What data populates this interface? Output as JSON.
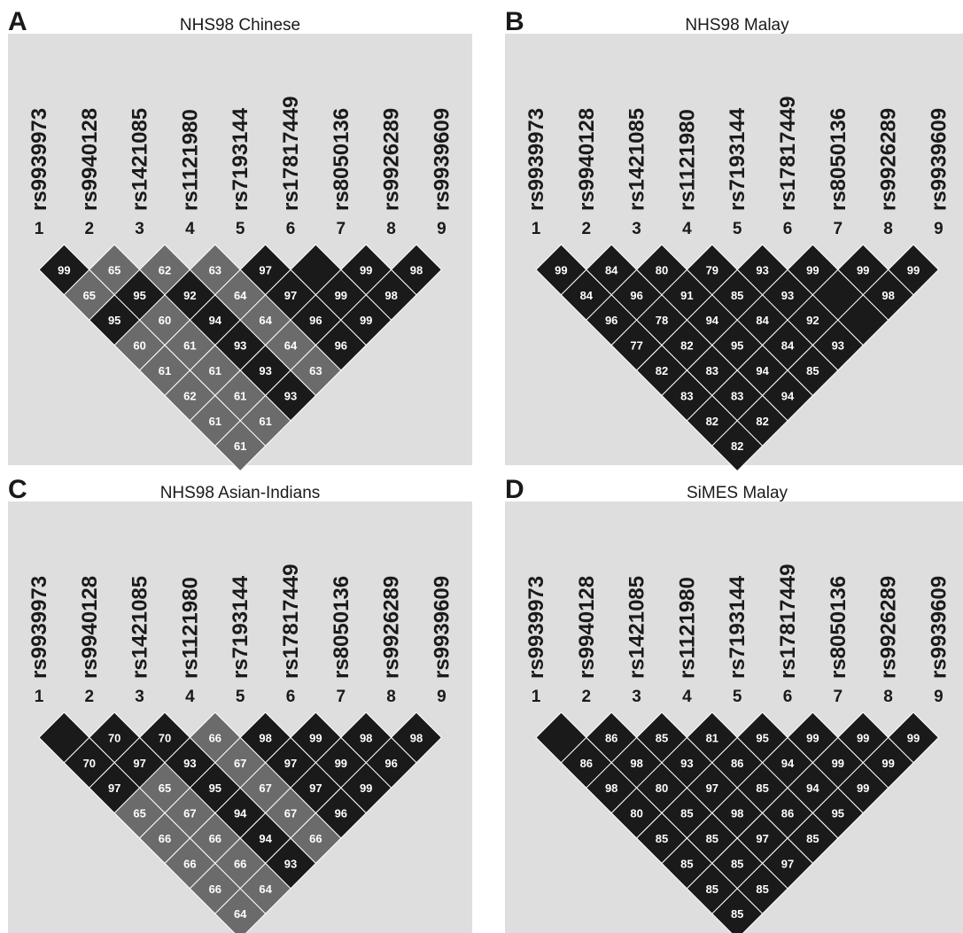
{
  "snps": [
    "rs9939973",
    "rs9940128",
    "rs1421085",
    "rs1121980",
    "rs7193144",
    "rs17817449",
    "rs8050136",
    "rs9926289",
    "rs9939609"
  ],
  "markers": [
    "1",
    "2",
    "3",
    "4",
    "5",
    "6",
    "7",
    "8",
    "9"
  ],
  "colors": {
    "background": "#dedede",
    "strong_ld": "#1a1a1a",
    "weak_ld": "#6b6b6b",
    "cell_text": "#ffffff"
  },
  "panels": [
    {
      "letter": "A",
      "title": "NHS98 Chinese",
      "matrix": [
        [
          "99",
          "65",
          "62",
          "63",
          "97",
          "",
          "99",
          "98"
        ],
        [
          "65",
          "95",
          "92",
          "64",
          "97",
          "99",
          "98"
        ],
        [
          "95",
          "60",
          "94",
          "64",
          "96",
          "99"
        ],
        [
          "60",
          "61",
          "93",
          "64",
          "96"
        ],
        [
          "61",
          "61",
          "93",
          "63"
        ],
        [
          "62",
          "61",
          "93"
        ],
        [
          "61",
          "61"
        ],
        [
          "61"
        ]
      ],
      "shades": [
        [
          "d",
          "m",
          "m",
          "m",
          "d",
          "d",
          "d",
          "d"
        ],
        [
          "m",
          "d",
          "d",
          "m",
          "d",
          "d",
          "d"
        ],
        [
          "d",
          "m",
          "d",
          "m",
          "d",
          "d"
        ],
        [
          "m",
          "m",
          "d",
          "m",
          "d"
        ],
        [
          "m",
          "m",
          "d",
          "m"
        ],
        [
          "m",
          "m",
          "d"
        ],
        [
          "m",
          "m"
        ],
        [
          "m"
        ]
      ]
    },
    {
      "letter": "B",
      "title": "NHS98 Malay",
      "matrix": [
        [
          "99",
          "84",
          "80",
          "79",
          "93",
          "99",
          "99",
          "99"
        ],
        [
          "84",
          "96",
          "91",
          "85",
          "93",
          "",
          "98"
        ],
        [
          "96",
          "78",
          "94",
          "84",
          "92",
          ""
        ],
        [
          "77",
          "82",
          "95",
          "84",
          "93"
        ],
        [
          "82",
          "83",
          "94",
          "85"
        ],
        [
          "83",
          "83",
          "94"
        ],
        [
          "82",
          "82"
        ],
        [
          "82"
        ]
      ],
      "shades": [
        [
          "d",
          "d",
          "d",
          "d",
          "d",
          "d",
          "d",
          "d"
        ],
        [
          "d",
          "d",
          "d",
          "d",
          "d",
          "d",
          "d"
        ],
        [
          "d",
          "d",
          "d",
          "d",
          "d",
          "d"
        ],
        [
          "d",
          "d",
          "d",
          "d",
          "d"
        ],
        [
          "d",
          "d",
          "d",
          "d"
        ],
        [
          "d",
          "d",
          "d"
        ],
        [
          "d",
          "d"
        ],
        [
          "d"
        ]
      ]
    },
    {
      "letter": "C",
      "title": "NHS98 Asian-Indians",
      "matrix": [
        [
          "",
          "70",
          "70",
          "66",
          "98",
          "99",
          "98",
          "98"
        ],
        [
          "70",
          "97",
          "93",
          "67",
          "97",
          "99",
          "96"
        ],
        [
          "97",
          "65",
          "95",
          "67",
          "97",
          "99"
        ],
        [
          "65",
          "67",
          "94",
          "67",
          "96"
        ],
        [
          "66",
          "66",
          "94",
          "66"
        ],
        [
          "66",
          "66",
          "93"
        ],
        [
          "66",
          "64"
        ],
        [
          "64"
        ]
      ],
      "shades": [
        [
          "d",
          "d",
          "d",
          "m",
          "d",
          "d",
          "d",
          "d"
        ],
        [
          "d",
          "d",
          "d",
          "m",
          "d",
          "d",
          "d"
        ],
        [
          "d",
          "m",
          "d",
          "m",
          "d",
          "d"
        ],
        [
          "m",
          "m",
          "d",
          "m",
          "d"
        ],
        [
          "m",
          "m",
          "d",
          "m"
        ],
        [
          "m",
          "m",
          "d"
        ],
        [
          "m",
          "m"
        ],
        [
          "m"
        ]
      ]
    },
    {
      "letter": "D",
      "title": "SiMES Malay",
      "matrix": [
        [
          "",
          "86",
          "85",
          "81",
          "95",
          "99",
          "99",
          "99"
        ],
        [
          "86",
          "98",
          "93",
          "86",
          "94",
          "99",
          "99"
        ],
        [
          "98",
          "80",
          "97",
          "85",
          "94",
          "99"
        ],
        [
          "80",
          "85",
          "98",
          "86",
          "95"
        ],
        [
          "85",
          "85",
          "97",
          "85"
        ],
        [
          "85",
          "85",
          "97"
        ],
        [
          "85",
          "85"
        ],
        [
          "85"
        ]
      ],
      "shades": [
        [
          "d",
          "d",
          "d",
          "d",
          "d",
          "d",
          "d",
          "d"
        ],
        [
          "d",
          "d",
          "d",
          "d",
          "d",
          "d",
          "d"
        ],
        [
          "d",
          "d",
          "d",
          "d",
          "d",
          "d"
        ],
        [
          "d",
          "d",
          "d",
          "d",
          "d"
        ],
        [
          "d",
          "d",
          "d",
          "d"
        ],
        [
          "d",
          "d",
          "d"
        ],
        [
          "d",
          "d"
        ],
        [
          "d"
        ]
      ]
    }
  ]
}
